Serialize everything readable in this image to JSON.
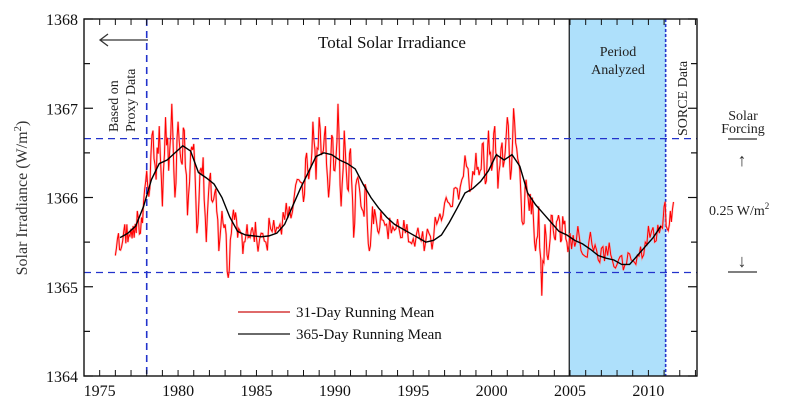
{
  "chart_data": {
    "type": "line",
    "title": "Total Solar Irradiance",
    "xlabel": "",
    "ylabel": "Solar Irradiance (W/m²)",
    "ylabel_main": "Solar Irradiance (W/m",
    "ylabel_sup": "2",
    "ylabel_close": ")",
    "xlim": [
      1974,
      2013.1
    ],
    "ylim": [
      1364,
      1368
    ],
    "x_ticks": [
      1975,
      1980,
      1985,
      1990,
      1995,
      2000,
      2005,
      2010
    ],
    "x_tick_labels": [
      "1975",
      "1980",
      "1985",
      "1990",
      "1995",
      "2000",
      "2005",
      "2010"
    ],
    "x_minor_step": 1,
    "y_ticks": [
      1364,
      1365,
      1366,
      1367,
      1368
    ],
    "y_tick_labels": [
      "1364",
      "1365",
      "1366",
      "1367",
      "1368"
    ],
    "y_minor_step": 0.5,
    "grid": false,
    "legend_position": "bottom-center",
    "series": [
      {
        "name": "31-Day Running Mean",
        "color": "#ff0000",
        "x": [
          1976.0,
          1976.2,
          1976.4,
          1976.6,
          1976.8,
          1977.0,
          1977.2,
          1977.4,
          1977.6,
          1977.8,
          1978.0,
          1978.2,
          1978.4,
          1978.6,
          1978.8,
          1979.0,
          1979.2,
          1979.4,
          1979.6,
          1979.8,
          1980.0,
          1980.2,
          1980.4,
          1980.6,
          1980.8,
          1981.0,
          1981.2,
          1981.4,
          1981.6,
          1981.8,
          1982.0,
          1982.2,
          1982.4,
          1982.6,
          1982.8,
          1983.0,
          1983.2,
          1983.4,
          1983.6,
          1983.8,
          1984.0,
          1984.2,
          1984.4,
          1984.6,
          1984.8,
          1985.0,
          1985.3,
          1985.6,
          1985.9,
          1986.2,
          1986.5,
          1986.8,
          1987.1,
          1987.4,
          1987.7,
          1988.0,
          1988.2,
          1988.4,
          1988.6,
          1988.8,
          1989.0,
          1989.2,
          1989.4,
          1989.6,
          1989.8,
          1990.0,
          1990.2,
          1990.4,
          1990.6,
          1990.8,
          1991.0,
          1991.2,
          1991.4,
          1991.6,
          1991.8,
          1992.0,
          1992.2,
          1992.4,
          1992.6,
          1992.8,
          1993.0,
          1993.3,
          1993.6,
          1993.9,
          1994.2,
          1994.5,
          1994.8,
          1995.1,
          1995.4,
          1995.7,
          1996.0,
          1996.3,
          1996.6,
          1996.9,
          1997.2,
          1997.5,
          1997.8,
          1998.1,
          1998.4,
          1998.7,
          1999.0,
          1999.2,
          1999.4,
          1999.6,
          1999.8,
          2000.0,
          2000.2,
          2000.4,
          2000.6,
          2000.8,
          2001.0,
          2001.2,
          2001.4,
          2001.6,
          2001.8,
          2002.0,
          2002.2,
          2002.4,
          2002.6,
          2002.8,
          2003.0,
          2003.2,
          2003.4,
          2003.6,
          2003.8,
          2004.0,
          2004.2,
          2004.4,
          2004.6,
          2004.8,
          2005.0,
          2005.3,
          2005.6,
          2005.9,
          2006.2,
          2006.5,
          2006.8,
          2007.1,
          2007.4,
          2007.7,
          2008.0,
          2008.3,
          2008.6,
          2008.9,
          2009.2,
          2009.5,
          2009.8,
          2010.1,
          2010.4,
          2010.7,
          2011.0,
          2011.2,
          2011.4,
          2011.6
        ],
        "values": [
          1365.35,
          1365.6,
          1365.45,
          1365.7,
          1365.5,
          1365.65,
          1365.55,
          1365.85,
          1365.6,
          1365.95,
          1366.3,
          1366.1,
          1366.75,
          1366.2,
          1366.8,
          1365.9,
          1366.9,
          1366.3,
          1367.05,
          1366.0,
          1366.85,
          1366.4,
          1366.75,
          1365.8,
          1366.5,
          1366.6,
          1365.6,
          1366.3,
          1366.45,
          1365.5,
          1366.2,
          1365.95,
          1366.1,
          1365.4,
          1365.85,
          1365.7,
          1365.1,
          1365.6,
          1365.75,
          1365.55,
          1365.6,
          1365.5,
          1365.7,
          1365.55,
          1365.6,
          1365.55,
          1365.6,
          1365.5,
          1365.65,
          1365.6,
          1365.7,
          1365.75,
          1365.9,
          1366.0,
          1366.2,
          1365.95,
          1366.5,
          1366.3,
          1366.85,
          1366.2,
          1366.9,
          1366.5,
          1366.8,
          1366.0,
          1366.7,
          1366.3,
          1367.05,
          1365.9,
          1366.75,
          1366.1,
          1366.55,
          1365.55,
          1366.2,
          1366.05,
          1365.85,
          1366.1,
          1365.4,
          1365.9,
          1365.8,
          1365.6,
          1365.75,
          1365.7,
          1365.6,
          1365.65,
          1365.55,
          1365.6,
          1365.5,
          1365.45,
          1365.55,
          1365.4,
          1365.6,
          1365.55,
          1365.75,
          1365.8,
          1365.95,
          1365.9,
          1366.1,
          1366.2,
          1366.35,
          1366.1,
          1366.5,
          1366.25,
          1366.6,
          1366.15,
          1366.75,
          1366.3,
          1366.8,
          1366.1,
          1366.55,
          1366.4,
          1366.9,
          1366.2,
          1367.0,
          1366.55,
          1366.3,
          1365.7,
          1366.2,
          1365.85,
          1366.0,
          1365.4,
          1365.9,
          1364.9,
          1365.7,
          1365.3,
          1365.8,
          1365.55,
          1365.75,
          1365.5,
          1365.7,
          1365.5,
          1365.6,
          1365.45,
          1365.55,
          1365.35,
          1365.5,
          1365.4,
          1365.3,
          1365.45,
          1365.35,
          1365.3,
          1365.25,
          1365.35,
          1365.25,
          1365.3,
          1365.25,
          1365.45,
          1365.5,
          1365.55,
          1365.5,
          1365.6,
          1365.9,
          1365.65,
          1365.85,
          1365.95
        ],
        "note": "31-day series shown as high-frequency noise around the 365-day mean; values approximated"
      },
      {
        "name": "365-Day Running Mean",
        "color": "#000000",
        "x": [
          1976.3,
          1976.8,
          1977.3,
          1977.8,
          1978.3,
          1978.8,
          1979.3,
          1979.8,
          1980.3,
          1980.8,
          1981.3,
          1981.8,
          1982.3,
          1982.8,
          1983.3,
          1983.8,
          1984.3,
          1984.8,
          1985.3,
          1985.8,
          1986.3,
          1986.8,
          1987.3,
          1987.8,
          1988.3,
          1988.8,
          1989.3,
          1989.8,
          1990.3,
          1990.8,
          1991.3,
          1991.8,
          1992.3,
          1992.8,
          1993.3,
          1993.8,
          1994.3,
          1994.8,
          1995.3,
          1995.8,
          1996.3,
          1996.8,
          1997.3,
          1997.8,
          1998.3,
          1998.8,
          1999.3,
          1999.8,
          2000.3,
          2000.8,
          2001.3,
          2001.8,
          2002.3,
          2002.8,
          2003.3,
          2003.8,
          2004.3,
          2004.8,
          2005.3,
          2005.8,
          2006.3,
          2006.8,
          2007.3,
          2007.8,
          2008.3,
          2008.8,
          2009.3,
          2009.8,
          2010.3,
          2010.8
        ],
        "values": [
          1365.55,
          1365.6,
          1365.68,
          1365.9,
          1366.2,
          1366.38,
          1366.42,
          1366.5,
          1366.58,
          1366.52,
          1366.28,
          1366.22,
          1366.15,
          1366.0,
          1365.78,
          1365.62,
          1365.58,
          1365.57,
          1365.56,
          1365.57,
          1365.6,
          1365.7,
          1365.9,
          1366.1,
          1366.28,
          1366.46,
          1366.5,
          1366.48,
          1366.42,
          1366.38,
          1366.32,
          1366.15,
          1366.0,
          1365.88,
          1365.78,
          1365.7,
          1365.65,
          1365.6,
          1365.55,
          1365.5,
          1365.52,
          1365.58,
          1365.72,
          1365.88,
          1366.05,
          1366.1,
          1366.18,
          1366.3,
          1366.48,
          1366.42,
          1366.48,
          1366.35,
          1366.05,
          1365.92,
          1365.82,
          1365.72,
          1365.62,
          1365.58,
          1365.52,
          1365.48,
          1365.42,
          1365.35,
          1365.32,
          1365.3,
          1365.25,
          1365.25,
          1365.35,
          1365.45,
          1365.55,
          1365.68
        ]
      }
    ],
    "reference_lines": {
      "horizontal": [
        {
          "y": 1366.66,
          "color": "#2233cc",
          "style": "dashed"
        },
        {
          "y": 1365.16,
          "color": "#2233cc",
          "style": "dashed"
        }
      ],
      "vertical": [
        {
          "x": 1978.0,
          "color": "#2233cc",
          "style": "dashed"
        },
        {
          "x": 2011.1,
          "color": "#2233cc",
          "style": "dashed"
        }
      ]
    },
    "shaded_region": {
      "x0": 2004.95,
      "x1": 2011.1,
      "color": "#aee0fb",
      "label_line1": "Period",
      "label_line2": "Analyzed"
    },
    "annotations": {
      "proxy_line1": "Based on",
      "proxy_line2": "Proxy Data",
      "sorce": "SORCE Data",
      "forcing_line1": "Solar",
      "forcing_line2": "Forcing",
      "forcing_value_main": "0.25 W/m",
      "forcing_value_sup": "2",
      "up_arrow": "↑",
      "down_arrow": "↓",
      "left_arrow": "←"
    }
  }
}
